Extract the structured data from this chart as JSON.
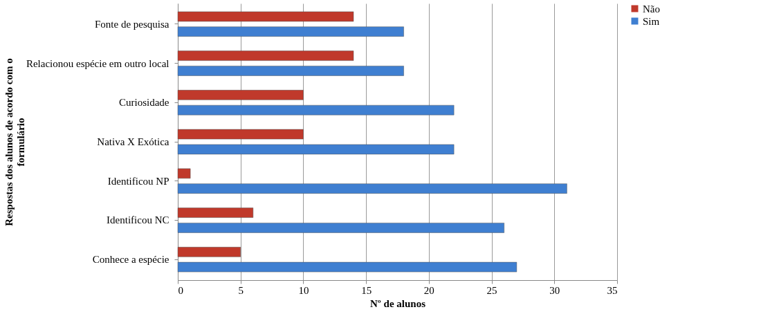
{
  "chart_data": {
    "type": "bar",
    "orientation": "horizontal",
    "xlabel": "Nº de alunos",
    "ylabel": "Respostas dos alunos de acordo com o formulário",
    "categories": [
      "Fonte de pesquisa",
      "Relacionou espécie em outro local",
      "Curiosidade",
      "Nativa X Exótica",
      "Identificou NP",
      "Identificou NC",
      "Conhece a espécie"
    ],
    "series": [
      {
        "name": "Não",
        "color": "#c0392b",
        "values": [
          14,
          14,
          10,
          10,
          1,
          6,
          5
        ]
      },
      {
        "name": "Sim",
        "color": "#3f7fd1",
        "values": [
          18,
          18,
          22,
          22,
          31,
          26,
          27
        ]
      }
    ],
    "xlim": [
      0,
      35
    ],
    "xticks": [
      0,
      5,
      10,
      15,
      20,
      25,
      30,
      35
    ],
    "grid": "x",
    "legend": "right"
  }
}
